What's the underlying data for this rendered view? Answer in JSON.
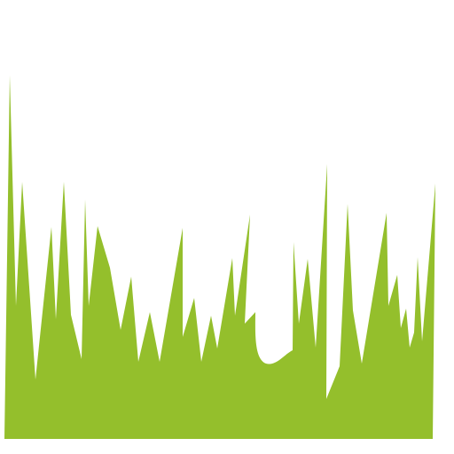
{
  "image": {
    "background_color": "#ffffff",
    "grass_color": "#94bf2c",
    "subject": "grass-silhouette-icon"
  }
}
